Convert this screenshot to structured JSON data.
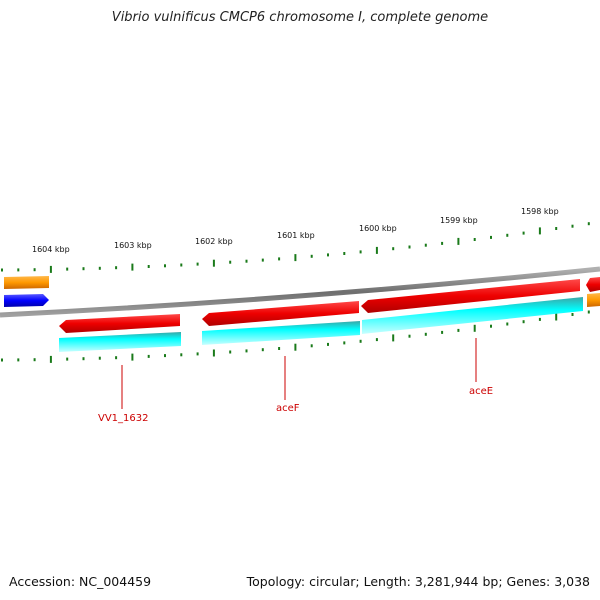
{
  "title": "Vibrio vulnificus CMCP6 chromosome I, complete genome",
  "footer": {
    "accession": "Accession: NC_004459",
    "topology": "Topology: circular; Length: 3,281,944 bp; Genes: 3,038"
  },
  "ruler": {
    "tick_labels": [
      "1604 kbp",
      "1603 kbp",
      "1602 kbp",
      "1601 kbp",
      "1600 kbp",
      "1599 kbp",
      "1598 kbp"
    ]
  },
  "genes": [
    {
      "name": "VV1_1632"
    },
    {
      "name": "aceF"
    },
    {
      "name": "aceE"
    }
  ],
  "colors": {
    "cds_forward": "#ff0000",
    "cds_feature": "#00ffff",
    "backbone": "#808080",
    "tick": "#1a7a1a",
    "gene_label": "#cc0000",
    "orange_feature": "#ff9900",
    "blue_feature": "#0000ff"
  }
}
